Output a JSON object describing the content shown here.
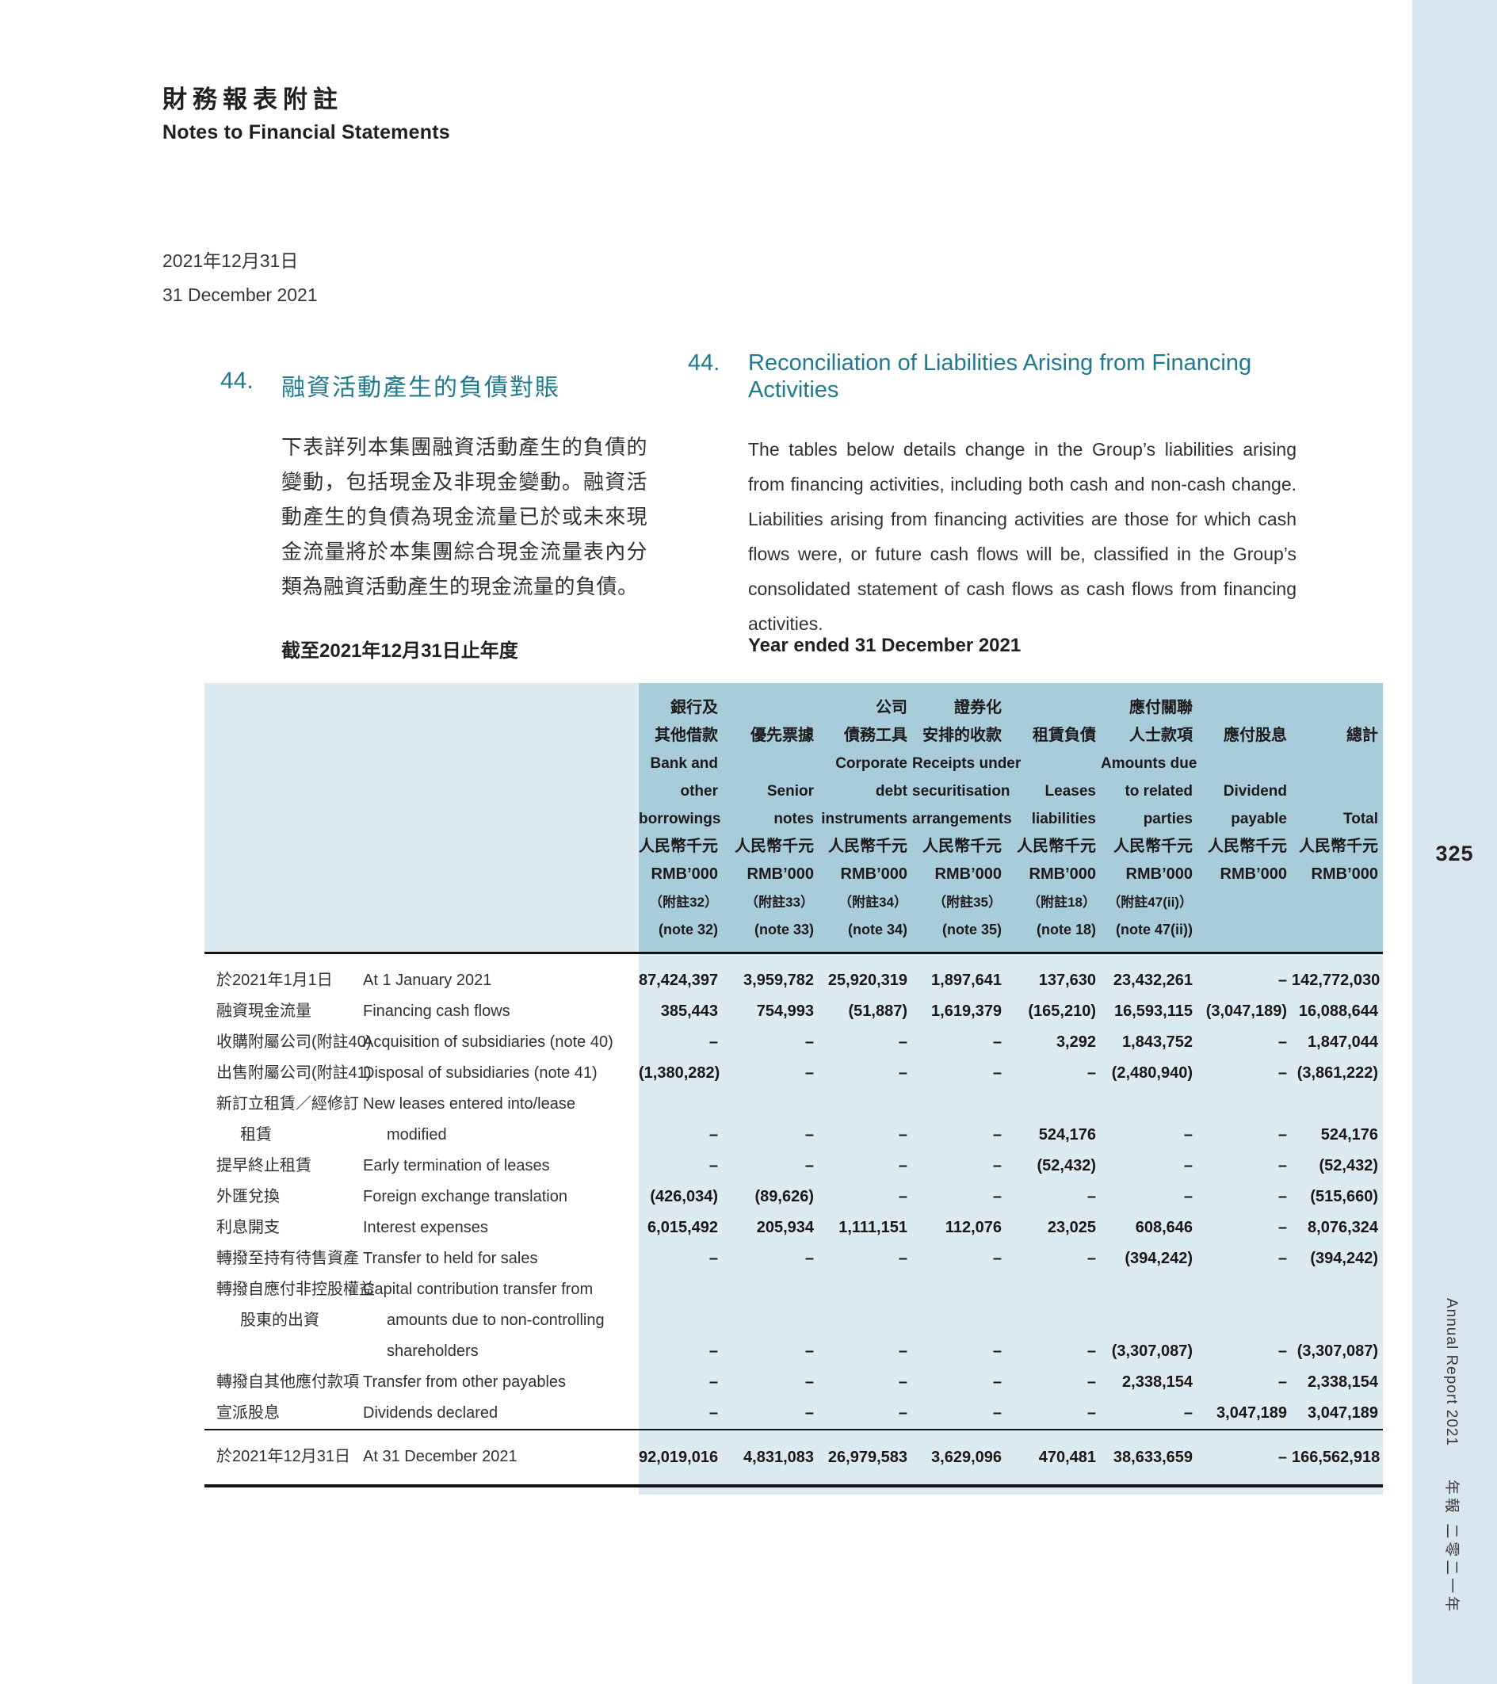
{
  "page": {
    "title_zh": "財務報表附註",
    "title_en": "Notes to Financial Statements",
    "date_zh": "2021年12月31日",
    "date_en": "31 December 2021",
    "page_number": "325",
    "sidebar_text_en": "Annual Report 2021",
    "sidebar_text_zh": "年報 二零二一年"
  },
  "colors": {
    "accent_teal": "#1f7a8e",
    "table_header_bg": "#a9ccda",
    "table_body_bg": "#dcebf1",
    "sidebar_bg": "#d8e6ef",
    "text_dark": "#231f20",
    "number_black": "#1a1718"
  },
  "section": {
    "number": "44.",
    "title_zh": "融資活動產生的負債對賬",
    "title_en": "Reconciliation of Liabilities Arising from Financing Activities",
    "body_zh": "下表詳列本集團融資活動產生的負債的變動，包括現金及非現金變動。融資活動產生的負債為現金流量已於或未來現金流量將於本集團綜合現金流量表內分類為融資活動產生的現金流量的負債。",
    "body_en": "The tables below details change in the Group’s liabilities arising from financing activities, including both cash and non-cash change. Liabilities arising from financing activities are those for which cash flows were, or future cash flows will be, classified in the Group’s consolidated statement of cash flows as cash flows from financing activities.",
    "subhead_zh": "截至2021年12月31日止年度",
    "subhead_en": "Year ended 31 December 2021"
  },
  "table": {
    "columns": [
      {
        "lines": [
          "銀行及",
          "其他借款",
          "Bank and",
          "other",
          "borrowings",
          "人民幣千元",
          "RMB’000",
          "（附註32）",
          "(note 32)"
        ]
      },
      {
        "lines": [
          "",
          "優先票據",
          "",
          "Senior",
          "notes",
          "人民幣千元",
          "RMB’000",
          "（附註33）",
          "(note 33)"
        ]
      },
      {
        "lines": [
          "公司",
          "債務工具",
          "Corporate",
          "debt",
          "instruments",
          "人民幣千元",
          "RMB’000",
          "（附註34）",
          "(note 34)"
        ]
      },
      {
        "lines": [
          "證券化",
          "安排的收款",
          "Receipts under",
          "securitisation",
          "arrangements",
          "人民幣千元",
          "RMB’000",
          "（附註35）",
          "(note 35)"
        ]
      },
      {
        "lines": [
          "",
          "租賃負債",
          "",
          "Leases",
          "liabilities",
          "人民幣千元",
          "RMB’000",
          "（附註18）",
          "(note 18)"
        ]
      },
      {
        "lines": [
          "應付關聯",
          "人士款項",
          "Amounts due",
          "to related",
          "parties",
          "人民幣千元",
          "RMB’000",
          "（附註47(ii)）",
          "(note 47(ii))"
        ]
      },
      {
        "lines": [
          "",
          "應付股息",
          "",
          "Dividend",
          "payable",
          "人民幣千元",
          "RMB’000",
          "",
          ""
        ]
      },
      {
        "lines": [
          "",
          "總計",
          "",
          "",
          "Total",
          "人民幣千元",
          "RMB’000",
          "",
          ""
        ]
      }
    ],
    "rows": [
      {
        "zh": [
          "於2021年1月1日"
        ],
        "en": [
          "At 1 January 2021"
        ],
        "values": [
          "87,424,397",
          "3,959,782",
          "25,920,319",
          "1,897,641",
          "137,630",
          "23,432,261",
          "–",
          "142,772,030"
        ]
      },
      {
        "zh": [
          "融資現金流量"
        ],
        "en": [
          "Financing cash flows"
        ],
        "values": [
          "385,443",
          "754,993",
          "(51,887)",
          "1,619,379",
          "(165,210)",
          "16,593,115",
          "(3,047,189)",
          "16,088,644"
        ]
      },
      {
        "zh": [
          "收購附屬公司(附註40)"
        ],
        "en": [
          "Acquisition of subsidiaries (note 40)"
        ],
        "values": [
          "–",
          "–",
          "–",
          "–",
          "3,292",
          "1,843,752",
          "–",
          "1,847,044"
        ]
      },
      {
        "zh": [
          "出售附屬公司(附註41)"
        ],
        "en": [
          "Disposal of subsidiaries (note 41)"
        ],
        "values": [
          "(1,380,282)",
          "–",
          "–",
          "–",
          "–",
          "(2,480,940)",
          "–",
          "(3,861,222)"
        ]
      },
      {
        "zh": [
          "新訂立租賃／經修訂",
          "租賃"
        ],
        "en": [
          "New leases entered into/lease",
          "modified"
        ],
        "values": [
          "–",
          "–",
          "–",
          "–",
          "524,176",
          "–",
          "–",
          "524,176"
        ]
      },
      {
        "zh": [
          "提早終止租賃"
        ],
        "en": [
          "Early termination of leases"
        ],
        "values": [
          "–",
          "–",
          "–",
          "–",
          "(52,432)",
          "–",
          "–",
          "(52,432)"
        ]
      },
      {
        "zh": [
          "外匯兌換"
        ],
        "en": [
          "Foreign exchange translation"
        ],
        "values": [
          "(426,034)",
          "(89,626)",
          "–",
          "–",
          "–",
          "–",
          "–",
          "(515,660)"
        ]
      },
      {
        "zh": [
          "利息開支"
        ],
        "en": [
          "Interest expenses"
        ],
        "values": [
          "6,015,492",
          "205,934",
          "1,111,151",
          "112,076",
          "23,025",
          "608,646",
          "–",
          "8,076,324"
        ]
      },
      {
        "zh": [
          "轉撥至持有待售資產"
        ],
        "en": [
          "Transfer to held for sales"
        ],
        "values": [
          "–",
          "–",
          "–",
          "–",
          "–",
          "(394,242)",
          "–",
          "(394,242)"
        ]
      },
      {
        "zh": [
          "轉撥自應付非控股權益",
          "股東的出資"
        ],
        "en": [
          "Capital contribution transfer from",
          "amounts due to non-controlling",
          "shareholders"
        ],
        "values": [
          "–",
          "–",
          "–",
          "–",
          "–",
          "(3,307,087)",
          "–",
          "(3,307,087)"
        ]
      },
      {
        "zh": [
          "轉撥自其他應付款項"
        ],
        "en": [
          "Transfer from other payables"
        ],
        "values": [
          "–",
          "–",
          "–",
          "–",
          "–",
          "2,338,154",
          "–",
          "2,338,154"
        ]
      },
      {
        "zh": [
          "宣派股息"
        ],
        "en": [
          "Dividends declared"
        ],
        "values": [
          "–",
          "–",
          "–",
          "–",
          "–",
          "–",
          "3,047,189",
          "3,047,189"
        ]
      },
      {
        "total": true,
        "zh": [
          "於2021年12月31日"
        ],
        "en": [
          "At 31 December 2021"
        ],
        "values": [
          "92,019,016",
          "4,831,083",
          "26,979,583",
          "3,629,096",
          "470,481",
          "38,633,659",
          "–",
          "166,562,918"
        ]
      }
    ]
  }
}
